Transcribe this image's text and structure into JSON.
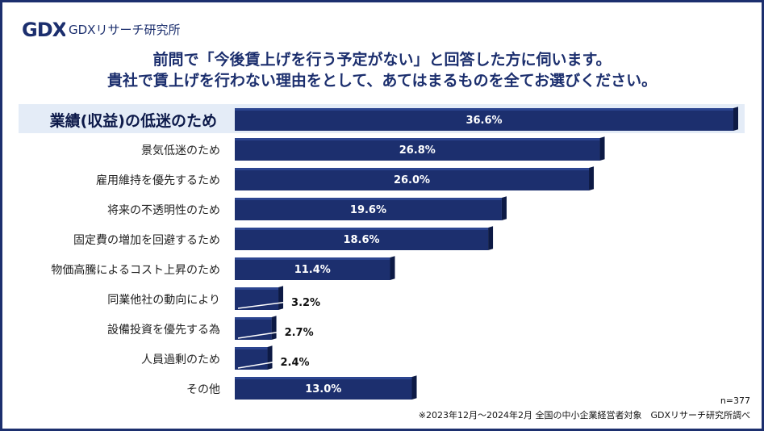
{
  "brand": {
    "logo_mark": "GDX",
    "name": "GDXリサーチ研究所"
  },
  "title_lines": [
    "前問で「今後賃上げを行う予定がない」と回答した方に伺います。",
    "貴社で賃上げを行わない理由をとして、あてはまるものを全てお選びください。"
  ],
  "chart_data": {
    "type": "bar",
    "orientation": "horizontal",
    "categories": [
      "業績(収益)の低迷のため",
      "景気低迷のため",
      "雇用維持を優先するため",
      "将来の不透明性のため",
      "固定費の増加を回避するため",
      "物価高騰によるコスト上昇のため",
      "同業他社の動向により",
      "設備投資を優先する為",
      "人員過剰のため",
      "その他"
    ],
    "values": [
      36.6,
      26.8,
      26.0,
      19.6,
      18.6,
      11.4,
      3.2,
      2.7,
      2.4,
      13.0
    ],
    "value_labels": [
      "36.6%",
      "26.8%",
      "26.0%",
      "19.6%",
      "18.6%",
      "11.4%",
      "3.2%",
      "2.7%",
      "2.4%",
      "13.0%"
    ],
    "highlight_index": 0,
    "xlim": [
      0,
      36.6
    ],
    "bar_color": "#1c2f6e",
    "highlight_bg": "#e4ecf7"
  },
  "footer": {
    "sample": "n=377",
    "source": "※2023年12月～2024年2月 全国の中小企業経営者対象　GDXリサーチ研究所調べ"
  }
}
